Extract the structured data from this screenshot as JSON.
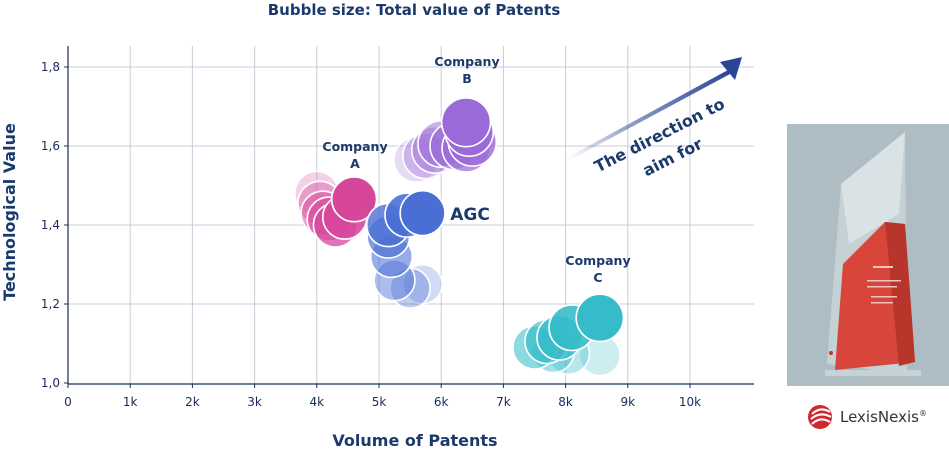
{
  "chart_data": {
    "type": "scatter",
    "title": "Bubble size: Total value of Patents",
    "xlabel": "Volume of Patents",
    "ylabel": "Technological Value",
    "xlim": [
      0,
      11000
    ],
    "ylim": [
      1.0,
      1.85
    ],
    "x_ticks": [
      0,
      1000,
      2000,
      3000,
      4000,
      5000,
      6000,
      7000,
      8000,
      9000,
      10000
    ],
    "x_tick_labels": [
      "0",
      "1k",
      "2k",
      "3k",
      "4k",
      "5k",
      "6k",
      "7k",
      "8k",
      "9k",
      "10k"
    ],
    "y_ticks": [
      1.0,
      1.2,
      1.4,
      1.6,
      1.8
    ],
    "y_tick_labels": [
      "1,0",
      "1,2",
      "1,4",
      "1,6",
      "1,8"
    ],
    "grid": true,
    "series": [
      {
        "name": "Company A",
        "label_lines": [
          "Company",
          "A"
        ],
        "color": "#d6479c",
        "points": [
          {
            "x": 4000,
            "y": 1.48,
            "size": 0.6
          },
          {
            "x": 4050,
            "y": 1.455,
            "size": 0.6
          },
          {
            "x": 4100,
            "y": 1.43,
            "size": 0.6
          },
          {
            "x": 4200,
            "y": 1.415,
            "size": 0.6
          },
          {
            "x": 4300,
            "y": 1.4,
            "size": 0.6
          },
          {
            "x": 4450,
            "y": 1.42,
            "size": 0.6
          },
          {
            "x": 4600,
            "y": 1.465,
            "size": 0.62
          }
        ]
      },
      {
        "name": "Company B",
        "label_lines": [
          "Company",
          "B"
        ],
        "color": "#9a6ad8",
        "points": [
          {
            "x": 5600,
            "y": 1.565,
            "size": 0.62
          },
          {
            "x": 5750,
            "y": 1.575,
            "size": 0.64
          },
          {
            "x": 5900,
            "y": 1.59,
            "size": 0.66
          },
          {
            "x": 6000,
            "y": 1.605,
            "size": 0.66
          },
          {
            "x": 6200,
            "y": 1.6,
            "size": 0.68
          },
          {
            "x": 6400,
            "y": 1.595,
            "size": 0.7
          },
          {
            "x": 6500,
            "y": 1.61,
            "size": 0.7
          },
          {
            "x": 6450,
            "y": 1.635,
            "size": 0.7
          },
          {
            "x": 6400,
            "y": 1.66,
            "size": 0.72
          }
        ]
      },
      {
        "name": "AGC",
        "label_lines": [
          "AGC"
        ],
        "color": "#4a6fd4",
        "points": [
          {
            "x": 5700,
            "y": 1.25,
            "size": 0.48
          },
          {
            "x": 5500,
            "y": 1.24,
            "size": 0.5
          },
          {
            "x": 5250,
            "y": 1.26,
            "size": 0.52
          },
          {
            "x": 5200,
            "y": 1.32,
            "size": 0.54
          },
          {
            "x": 5150,
            "y": 1.37,
            "size": 0.56
          },
          {
            "x": 5150,
            "y": 1.4,
            "size": 0.58
          },
          {
            "x": 5450,
            "y": 1.425,
            "size": 0.6
          },
          {
            "x": 5700,
            "y": 1.43,
            "size": 0.62
          }
        ]
      },
      {
        "name": "Company C",
        "label_lines": [
          "Company",
          "C"
        ],
        "color": "#36bcc8",
        "points": [
          {
            "x": 8550,
            "y": 1.07,
            "size": 0.52
          },
          {
            "x": 8050,
            "y": 1.075,
            "size": 0.54
          },
          {
            "x": 7800,
            "y": 1.08,
            "size": 0.56
          },
          {
            "x": 7500,
            "y": 1.09,
            "size": 0.58
          },
          {
            "x": 7700,
            "y": 1.105,
            "size": 0.6
          },
          {
            "x": 7900,
            "y": 1.115,
            "size": 0.62
          },
          {
            "x": 8100,
            "y": 1.14,
            "size": 0.64
          },
          {
            "x": 8550,
            "y": 1.165,
            "size": 0.68
          }
        ]
      }
    ],
    "annotations": {
      "arrow_text_lines": [
        "The direction to",
        "aim for"
      ]
    }
  },
  "logo": {
    "text": "LexisNexis",
    "trademark": "®"
  },
  "colors": {
    "axis_text": "#1b3a6b",
    "grid": "#c8ccd8",
    "arrow": "#2b4596"
  }
}
